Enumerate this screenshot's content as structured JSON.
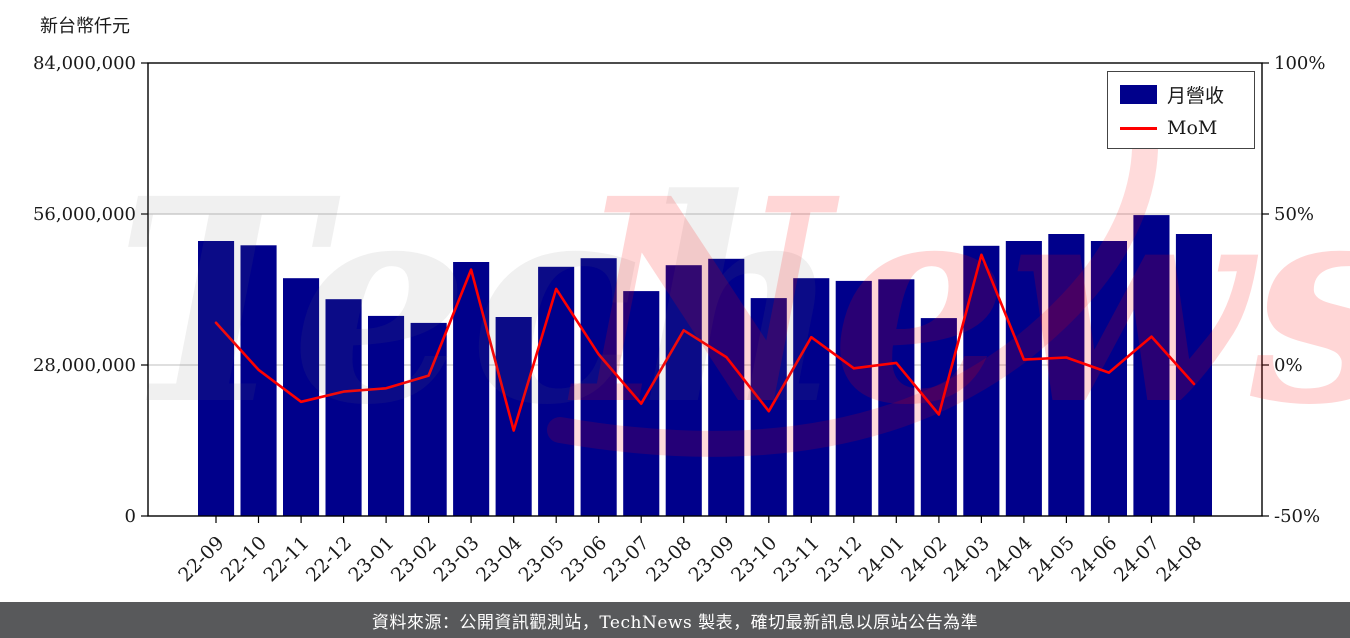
{
  "header": {
    "unit_label": "新台幣仟元"
  },
  "legend": {
    "bar_label": "月營收",
    "line_label": "MoM"
  },
  "watermark": {
    "part1": "Tech",
    "part2": "News"
  },
  "footer": {
    "source_text": "資料來源：公開資訊觀測站，TechNews 製表，確切最新訊息以原站公告為準"
  },
  "colors": {
    "bar": "#00008b",
    "line": "#ff0000",
    "grid": "#cccccc",
    "axis": "#000000",
    "footer_bg": "#58595b",
    "watermark_red": "rgba(255,0,0,0.16)",
    "watermark_gray": "rgba(110,110,110,0.10)"
  },
  "chart_data": {
    "type": "bar",
    "title": "",
    "ylabel": "新台幣仟元",
    "categories": [
      "22-09",
      "22-10",
      "22-11",
      "22-12",
      "23-01",
      "23-02",
      "23-03",
      "23-04",
      "23-05",
      "23-06",
      "23-07",
      "23-08",
      "23-09",
      "23-10",
      "23-11",
      "23-12",
      "24-01",
      "24-02",
      "24-03",
      "24-04",
      "24-05",
      "24-06",
      "24-07",
      "24-08"
    ],
    "series": [
      {
        "name": "月營收",
        "type": "bar",
        "axis": "left",
        "values": [
          51000000,
          50200000,
          44100000,
          40200000,
          37100000,
          35800000,
          47100000,
          36900000,
          46200000,
          47800000,
          41700000,
          46500000,
          47700000,
          40400000,
          44100000,
          43600000,
          43900000,
          36700000,
          50100000,
          51000000,
          52300000,
          51000000,
          55800000,
          52300000
        ]
      },
      {
        "name": "MoM",
        "type": "line",
        "axis": "right",
        "values": [
          14.0,
          -1.6,
          -12.2,
          -8.8,
          -7.7,
          -3.5,
          31.6,
          -21.7,
          25.2,
          3.5,
          -12.8,
          11.5,
          2.6,
          -15.3,
          9.2,
          -1.1,
          0.7,
          -16.4,
          36.5,
          1.8,
          2.5,
          -2.5,
          9.4,
          -6.3
        ]
      }
    ],
    "left_axis": {
      "range": [
        0,
        84000000
      ],
      "ticks": [
        0,
        28000000,
        56000000,
        84000000
      ],
      "tick_labels": [
        "0",
        "28,000,000",
        "56,000,000",
        "84,000,000"
      ]
    },
    "right_axis": {
      "range": [
        -50,
        100
      ],
      "ticks": [
        -50,
        0,
        50,
        100
      ],
      "tick_labels": [
        "-50%",
        "0%",
        "50%",
        "100%"
      ]
    },
    "grid": "horizontal",
    "legend_position": "top-right"
  }
}
